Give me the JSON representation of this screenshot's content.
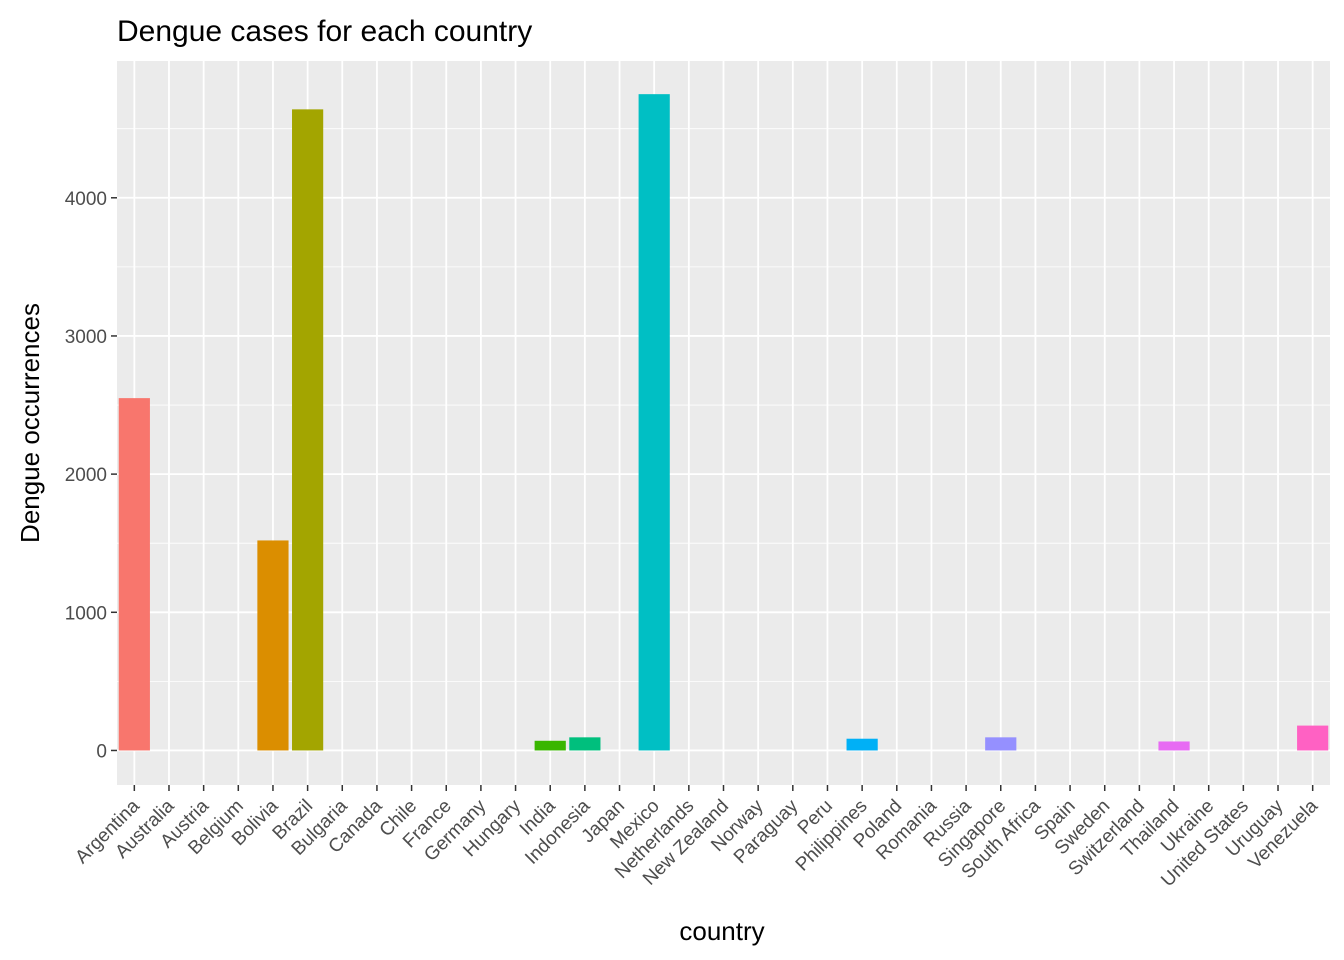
{
  "chart_data": {
    "type": "bar",
    "title": "Dengue cases for each country",
    "xlabel": "country",
    "ylabel": "Dengue occurrences",
    "ylim": [
      -250,
      4990
    ],
    "yticks": [
      0,
      1000,
      2000,
      3000,
      4000
    ],
    "grid": true,
    "legend": "none",
    "categories": [
      "Argentina",
      "Australia",
      "Austria",
      "Belgium",
      "Bolivia",
      "Brazil",
      "Bulgaria",
      "Canada",
      "Chile",
      "France",
      "Germany",
      "Hungary",
      "India",
      "Indonesia",
      "Japan",
      "Mexico",
      "Netherlands",
      "New Zealand",
      "Norway",
      "Paraguay",
      "Peru",
      "Philippines",
      "Poland",
      "Romania",
      "Russia",
      "Singapore",
      "South Africa",
      "Spain",
      "Sweden",
      "Switzerland",
      "Thailand",
      "Ukraine",
      "United States",
      "Uruguay",
      "Venezuela"
    ],
    "values": [
      2550,
      0,
      0,
      0,
      1520,
      4640,
      0,
      0,
      0,
      0,
      0,
      0,
      70,
      95,
      0,
      4750,
      0,
      0,
      0,
      0,
      0,
      85,
      0,
      0,
      0,
      95,
      0,
      0,
      0,
      0,
      65,
      0,
      0,
      0,
      180
    ],
    "colors": [
      "#F8766D",
      "#F37B59",
      "#ED813E",
      "#E58700",
      "#DB8E00",
      "#A3A500",
      "#C49A00",
      "#B79F00",
      "#A9A400",
      "#99A800",
      "#86AC00",
      "#6FB000",
      "#39B600",
      "#00BF7D",
      "#00BE70",
      "#00BFC4",
      "#00BFB1",
      "#00C0AF",
      "#00BDD0",
      "#00B9E3",
      "#00B4EF",
      "#00B0F6",
      "#00A5FF",
      "#3D9CFF",
      "#7C96FF",
      "#9590FF",
      "#B385FF",
      "#C77CFF",
      "#D874FD",
      "#E76BF3",
      "#E76BF3",
      "#FA62DB",
      "#FF62BC",
      "#FF65AE",
      "#FF61C3"
    ]
  }
}
